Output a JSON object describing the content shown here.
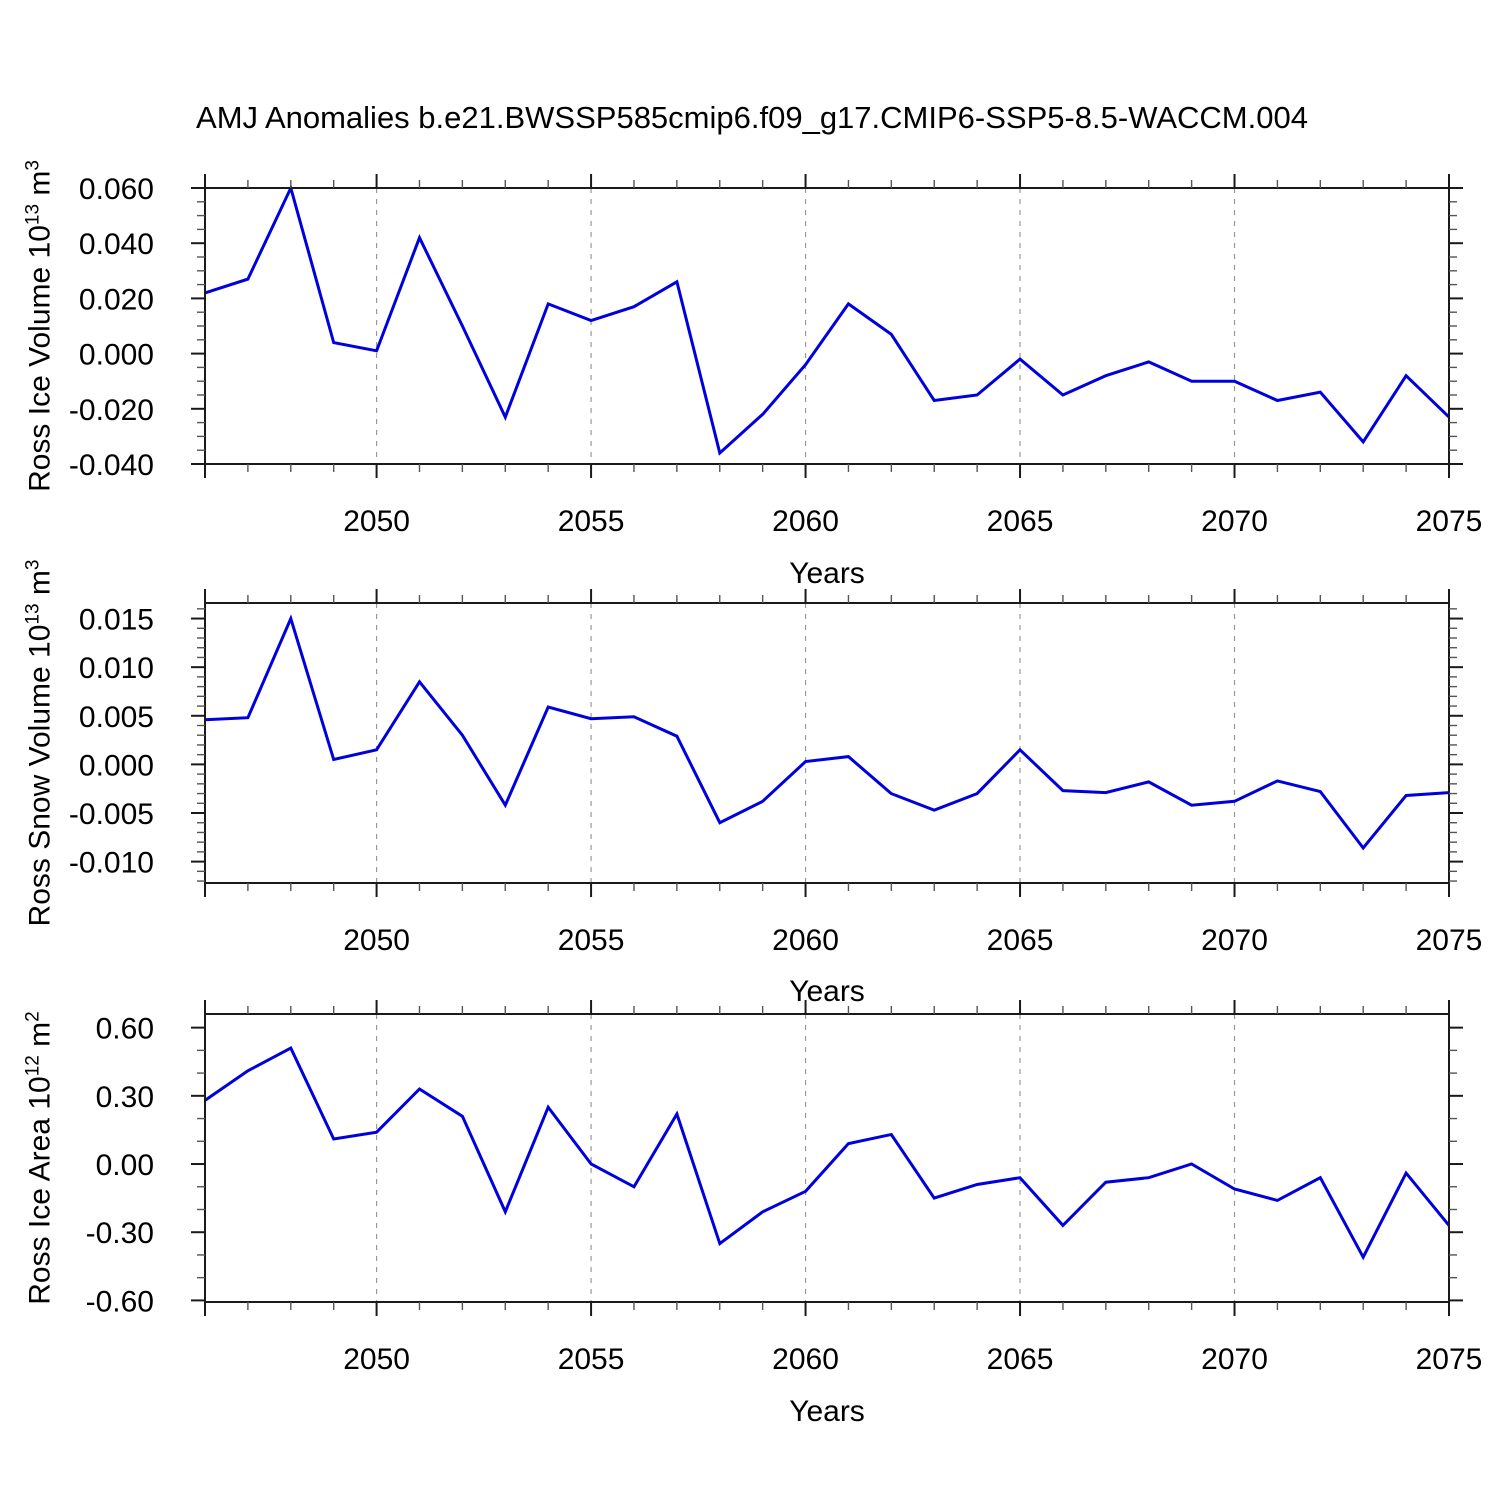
{
  "title": "AMJ Anomalies b.e21.BWSSP585cmip6.f09_g17.CMIP6-SSP5-8.5-WACCM.004",
  "colors": {
    "line": "#0000dd",
    "frame": "#1a1a1a",
    "grid": "#999999"
  },
  "chart_data": [
    {
      "type": "line",
      "name": "ross-ice-volume",
      "ylabel": "Ross Ice Volume 10^13 m^3",
      "ylabel_parts": {
        "prefix": "Ross Ice Volume 10",
        "exp": "13",
        "mid": " m",
        "exp2": "3"
      },
      "xlabel": "Years",
      "x": [
        2046,
        2047,
        2048,
        2049,
        2050,
        2051,
        2052,
        2053,
        2054,
        2055,
        2056,
        2057,
        2058,
        2059,
        2060,
        2061,
        2062,
        2063,
        2064,
        2065,
        2066,
        2067,
        2068,
        2069,
        2070,
        2071,
        2072,
        2073,
        2074,
        2075
      ],
      "values": [
        0.022,
        0.027,
        0.06,
        0.004,
        0.001,
        0.042,
        0.01,
        -0.023,
        0.018,
        0.012,
        0.017,
        0.026,
        -0.036,
        -0.022,
        -0.004,
        0.018,
        0.007,
        -0.017,
        -0.015,
        -0.002,
        -0.015,
        -0.008,
        -0.003,
        -0.01,
        -0.01,
        -0.017,
        -0.014,
        -0.032,
        -0.008,
        -0.023
      ],
      "ylim": [
        -0.04,
        0.06
      ],
      "y_major_ticks": [
        {
          "v": 0.06,
          "label": "0.060"
        },
        {
          "v": 0.04,
          "label": "0.040"
        },
        {
          "v": 0.02,
          "label": "0.020"
        },
        {
          "v": 0.0,
          "label": "0.000"
        },
        {
          "v": -0.02,
          "label": "-0.020"
        },
        {
          "v": -0.04,
          "label": "-0.040"
        }
      ],
      "y_minor_step": 0.005,
      "x_major_ticks": [
        2050,
        2055,
        2060,
        2065,
        2070,
        2075
      ],
      "x_tick_labels": [
        "2050",
        "2055",
        "2060",
        "2065",
        "2070",
        "2075"
      ],
      "x_gridlines": [
        2050,
        2055,
        2060,
        2065,
        2070
      ]
    },
    {
      "type": "line",
      "name": "ross-snow-volume",
      "ylabel": "Ross Snow Volume 10^13 m^3",
      "ylabel_parts": {
        "prefix": "Ross Snow Volume 10",
        "exp": "13",
        "mid": " m",
        "exp2": "3"
      },
      "xlabel": "Years",
      "x": [
        2046,
        2047,
        2048,
        2049,
        2050,
        2051,
        2052,
        2053,
        2054,
        2055,
        2056,
        2057,
        2058,
        2059,
        2060,
        2061,
        2062,
        2063,
        2064,
        2065,
        2066,
        2067,
        2068,
        2069,
        2070,
        2071,
        2072,
        2073,
        2074,
        2075
      ],
      "values": [
        0.0046,
        0.0048,
        0.015,
        0.0005,
        0.0015,
        0.0085,
        0.003,
        -0.0042,
        0.0059,
        0.0047,
        0.0049,
        0.0029,
        -0.006,
        -0.0038,
        0.0003,
        0.0008,
        -0.003,
        -0.0047,
        -0.003,
        0.0015,
        -0.0027,
        -0.0029,
        -0.0018,
        -0.0042,
        -0.0038,
        -0.0017,
        -0.0028,
        -0.0086,
        -0.0032,
        -0.0029
      ],
      "ylim": [
        -0.0122,
        0.0166
      ],
      "y_major_ticks": [
        {
          "v": 0.015,
          "label": "0.015"
        },
        {
          "v": 0.01,
          "label": "0.010"
        },
        {
          "v": 0.005,
          "label": "0.005"
        },
        {
          "v": 0.0,
          "label": "0.000"
        },
        {
          "v": -0.005,
          "label": "-0.005"
        },
        {
          "v": -0.01,
          "label": "-0.010"
        }
      ],
      "y_minor_step": 0.001,
      "x_major_ticks": [
        2050,
        2055,
        2060,
        2065,
        2070,
        2075
      ],
      "x_tick_labels": [
        "2050",
        "2055",
        "2060",
        "2065",
        "2070",
        "2075"
      ],
      "x_gridlines": [
        2050,
        2055,
        2060,
        2065,
        2070
      ]
    },
    {
      "type": "line",
      "name": "ross-ice-area",
      "ylabel": "Ross Ice Area 10^12 m^2",
      "ylabel_parts": {
        "prefix": "Ross Ice Area 10",
        "exp": "12",
        "mid": " m",
        "exp2": "2"
      },
      "xlabel": "Years",
      "x": [
        2046,
        2047,
        2048,
        2049,
        2050,
        2051,
        2052,
        2053,
        2054,
        2055,
        2056,
        2057,
        2058,
        2059,
        2060,
        2061,
        2062,
        2063,
        2064,
        2065,
        2066,
        2067,
        2068,
        2069,
        2070,
        2071,
        2072,
        2073,
        2074,
        2075
      ],
      "values": [
        0.28,
        0.41,
        0.51,
        0.11,
        0.14,
        0.33,
        0.21,
        -0.21,
        0.25,
        0.0,
        -0.1,
        0.22,
        -0.35,
        -0.21,
        -0.12,
        0.09,
        0.13,
        -0.15,
        -0.09,
        -0.06,
        -0.27,
        -0.08,
        -0.06,
        0.0,
        -0.11,
        -0.16,
        -0.06,
        -0.41,
        -0.04,
        -0.27
      ],
      "ylim": [
        -0.607,
        0.66
      ],
      "y_major_ticks": [
        {
          "v": 0.6,
          "label": "0.60"
        },
        {
          "v": 0.3,
          "label": "0.30"
        },
        {
          "v": 0.0,
          "label": "0.00"
        },
        {
          "v": -0.3,
          "label": "-0.30"
        },
        {
          "v": -0.6,
          "label": "-0.60"
        }
      ],
      "y_minor_step": 0.1,
      "x_major_ticks": [
        2050,
        2055,
        2060,
        2065,
        2070,
        2075
      ],
      "x_tick_labels": [
        "2050",
        "2055",
        "2060",
        "2065",
        "2070",
        "2075"
      ],
      "x_gridlines": [
        2050,
        2055,
        2060,
        2065,
        2070
      ]
    }
  ]
}
